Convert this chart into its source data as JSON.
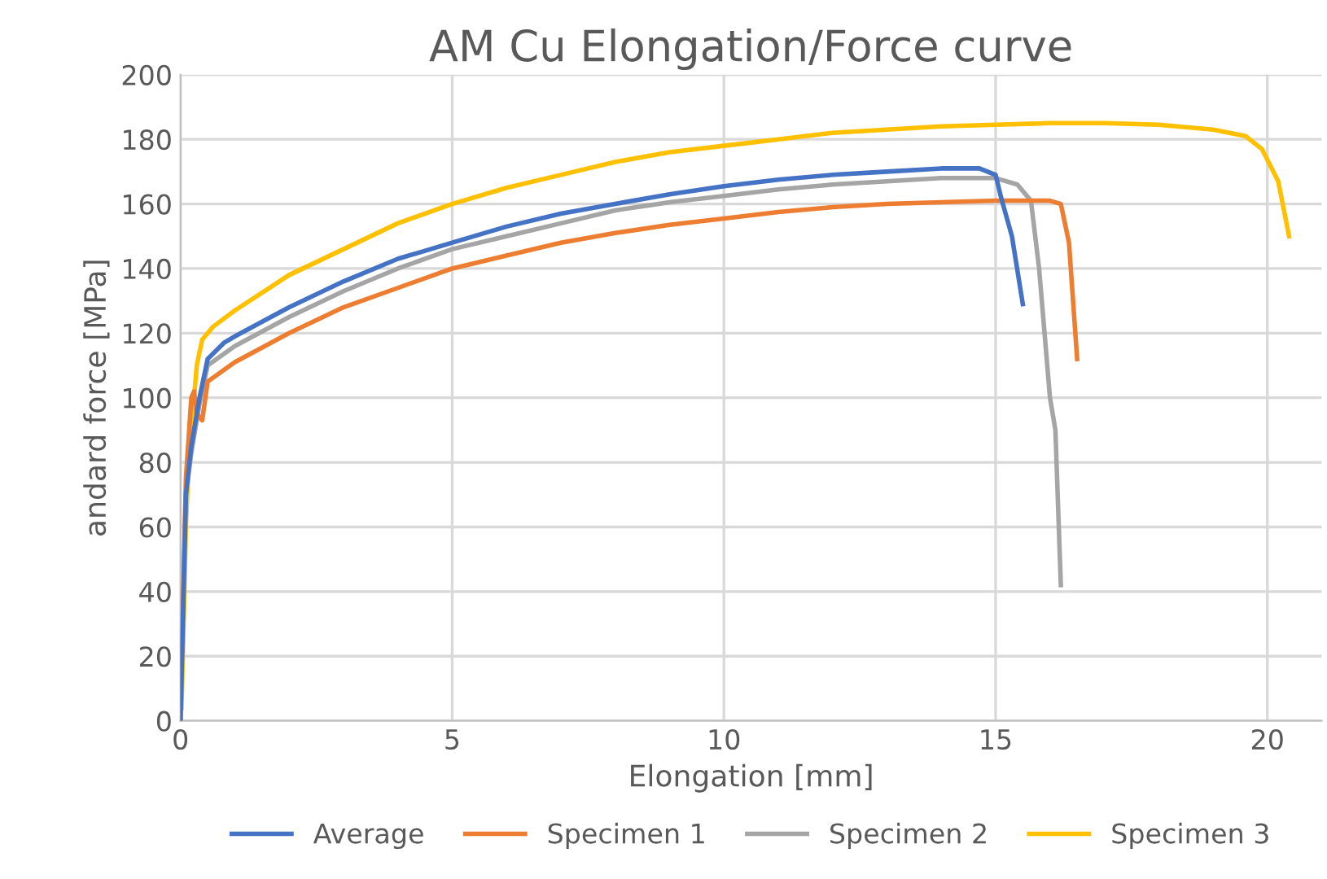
{
  "chart_data": {
    "type": "line",
    "title": "AM Cu Elongation/Force curve",
    "xlabel": "Elongation [mm]",
    "ylabel": "andard force [MPa]",
    "xlim": [
      0,
      21
    ],
    "xticks": [
      0,
      5,
      10,
      15,
      20
    ],
    "ylim": [
      0,
      200
    ],
    "yticks": [
      0,
      20,
      40,
      60,
      80,
      100,
      120,
      140,
      160,
      180,
      200
    ],
    "grid": true,
    "legend": "bottom",
    "marker": "none",
    "line_style": "solid",
    "series": [
      {
        "name": "Average",
        "color": "#4472c4",
        "x": [
          0,
          0.1,
          0.2,
          0.35,
          0.5,
          0.8,
          1,
          2,
          3,
          4,
          5,
          6,
          7,
          8,
          9,
          10,
          11,
          12,
          13,
          14,
          14.7,
          15.0,
          15.1,
          15.3,
          15.5
        ],
        "values": [
          0,
          70,
          85,
          100,
          112,
          117,
          119,
          128,
          136,
          143,
          148,
          153,
          157,
          160,
          163,
          165.5,
          167.5,
          169,
          170,
          171,
          171,
          169,
          162,
          150,
          129
        ]
      },
      {
        "name": "Specimen 1",
        "color": "#ed7d31",
        "x": [
          0,
          0.1,
          0.2,
          0.25,
          0.3,
          0.4,
          0.5,
          1,
          2,
          3,
          4,
          5,
          6,
          7,
          8,
          9,
          10,
          11,
          12,
          13,
          14,
          15,
          16,
          16.2,
          16.35,
          16.5
        ],
        "values": [
          0,
          75,
          100,
          102,
          95,
          93,
          105,
          111,
          120,
          128,
          134,
          140,
          144,
          148,
          151,
          153.5,
          155.5,
          157.5,
          159,
          160,
          160.5,
          161,
          161,
          160,
          148,
          112
        ]
      },
      {
        "name": "Specimen 2",
        "color": "#a5a5a5",
        "x": [
          0,
          0.1,
          0.2,
          0.35,
          0.5,
          1,
          2,
          3,
          4,
          5,
          6,
          7,
          8,
          9,
          10,
          11,
          12,
          13,
          14,
          15,
          15.4,
          15.65,
          15.8,
          15.9,
          16.0,
          16.1,
          16.2
        ],
        "values": [
          0,
          70,
          83,
          98,
          110,
          116,
          125,
          133,
          140,
          146,
          150,
          154,
          158,
          160.5,
          162.5,
          164.5,
          166,
          167,
          168,
          168,
          166,
          161,
          140,
          120,
          100,
          90,
          42
        ]
      },
      {
        "name": "Specimen 3",
        "color": "#ffc000",
        "x": [
          0.02,
          0.1,
          0.15,
          0.3,
          0.4,
          0.6,
          1,
          2,
          3,
          4,
          5,
          6,
          7,
          8,
          9,
          10,
          11,
          12,
          13,
          14,
          15,
          16,
          17,
          18,
          19,
          19.6,
          19.9,
          20.2,
          20.4
        ],
        "values": [
          4,
          60,
          80,
          110,
          118,
          122,
          127,
          138,
          146,
          154,
          160,
          165,
          169,
          173,
          176,
          178,
          180,
          182,
          183,
          184,
          184.5,
          185,
          185,
          184.5,
          183,
          181,
          177,
          167,
          150
        ]
      }
    ]
  }
}
